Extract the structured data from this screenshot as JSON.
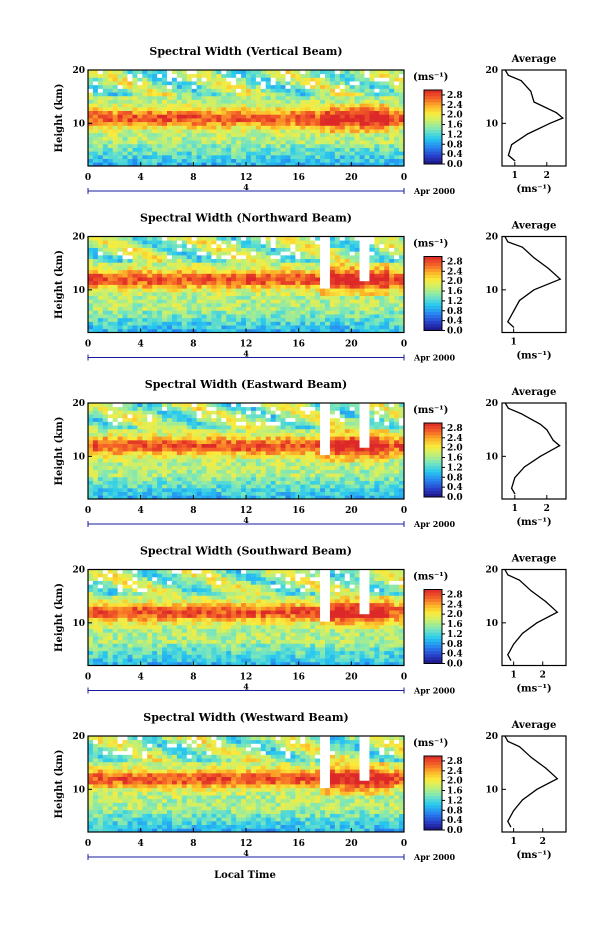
{
  "figure": {
    "xlabel_bottom": "Local Time",
    "date_label": "Apr 2000",
    "day_marker": "4"
  },
  "chart_data": [
    {
      "type": "heatmap",
      "title": "Spectral Width (Vertical Beam)",
      "ylabel": "Height (km)",
      "ylim": [
        2,
        20
      ],
      "xlim": [
        0,
        24
      ],
      "xticks": [
        "0",
        "4",
        "8",
        "12",
        "16",
        "20",
        "0"
      ],
      "yticks": [
        "10",
        "20"
      ],
      "colorbar": {
        "unit": "(ms⁻¹)",
        "ticks": [
          "2.8",
          "2.4",
          "2.0",
          "1.6",
          "1.2",
          "0.8",
          "0.4",
          "0.0"
        ],
        "range": [
          0,
          3.0
        ]
      },
      "layer_peak_km": 11,
      "average_profile": {
        "title": "Average",
        "xlabel": "(ms⁻¹)",
        "xticks": [
          "1",
          "2"
        ],
        "xlim": [
          0.6,
          2.6
        ],
        "height_km": [
          3,
          4,
          6,
          8,
          10,
          11,
          12,
          14,
          16,
          18,
          19,
          20
        ],
        "width_ms": [
          1.0,
          0.8,
          0.9,
          1.4,
          2.1,
          2.5,
          2.3,
          1.6,
          1.5,
          1.2,
          0.8,
          0.7
        ]
      }
    },
    {
      "type": "heatmap",
      "title": "Spectral Width (Northward Beam)",
      "ylabel": "Height (km)",
      "ylim": [
        2,
        20
      ],
      "xlim": [
        0,
        24
      ],
      "xticks": [
        "0",
        "4",
        "8",
        "12",
        "16",
        "20",
        "0"
      ],
      "yticks": [
        "10",
        "20"
      ],
      "colorbar": {
        "unit": "(ms⁻¹)",
        "ticks": [
          "2.8",
          "2.4",
          "2.0",
          "1.6",
          "1.2",
          "0.8",
          "0.4",
          "0.0"
        ],
        "range": [
          0,
          3.0
        ]
      },
      "layer_peak_km": 12,
      "average_profile": {
        "title": "Average",
        "xlabel": "(ms⁻¹)",
        "xticks": [
          "1"
        ],
        "xlim": [
          0.6,
          2.8
        ],
        "height_km": [
          3,
          4,
          6,
          8,
          10,
          12,
          13,
          14,
          16,
          18,
          19,
          20
        ],
        "width_ms": [
          1.0,
          0.8,
          1.0,
          1.2,
          1.7,
          2.6,
          2.4,
          2.2,
          1.7,
          1.3,
          0.8,
          0.7
        ]
      }
    },
    {
      "type": "heatmap",
      "title": "Spectral Width (Eastward Beam)",
      "ylabel": "Height (km)",
      "ylim": [
        2,
        20
      ],
      "xlim": [
        0,
        24
      ],
      "xticks": [
        "0",
        "4",
        "8",
        "12",
        "16",
        "20",
        "0"
      ],
      "yticks": [
        "10",
        "20"
      ],
      "colorbar": {
        "unit": "(ms⁻¹)",
        "ticks": [
          "2.8",
          "2.4",
          "2.0",
          "1.6",
          "1.2",
          "0.8",
          "0.4",
          "0.0"
        ],
        "range": [
          0,
          3.0
        ]
      },
      "layer_peak_km": 12,
      "average_profile": {
        "title": "Average",
        "xlabel": "(ms⁻¹)",
        "xticks": [
          "1",
          "2"
        ],
        "xlim": [
          0.6,
          2.6
        ],
        "height_km": [
          3,
          4,
          6,
          8,
          10,
          12,
          13,
          15,
          16,
          18,
          19,
          20
        ],
        "width_ms": [
          1.0,
          0.9,
          1.0,
          1.3,
          1.8,
          2.4,
          2.2,
          2.0,
          1.8,
          1.2,
          0.8,
          0.7
        ]
      }
    },
    {
      "type": "heatmap",
      "title": "Spectral Width (Southward Beam)",
      "ylabel": "Height (km)",
      "ylim": [
        2,
        20
      ],
      "xlim": [
        0,
        24
      ],
      "xticks": [
        "0",
        "4",
        "8",
        "12",
        "16",
        "20",
        "0"
      ],
      "yticks": [
        "10",
        "20"
      ],
      "colorbar": {
        "unit": "(ms⁻¹)",
        "ticks": [
          "2.8",
          "2.4",
          "2.0",
          "1.6",
          "1.2",
          "0.8",
          "0.4",
          "0.0"
        ],
        "range": [
          0,
          3.0
        ]
      },
      "layer_peak_km": 12,
      "average_profile": {
        "title": "Average",
        "xlabel": "(ms⁻¹)",
        "xticks": [
          "1",
          "2"
        ],
        "xlim": [
          0.6,
          2.8
        ],
        "height_km": [
          3,
          4,
          6,
          8,
          10,
          12,
          13,
          14,
          16,
          18,
          19,
          20
        ],
        "width_ms": [
          0.9,
          0.8,
          1.0,
          1.3,
          1.8,
          2.5,
          2.3,
          2.1,
          1.6,
          1.2,
          0.8,
          0.7
        ]
      }
    },
    {
      "type": "heatmap",
      "title": "Spectral Width (Westward Beam)",
      "ylabel": "Height (km)",
      "ylim": [
        2,
        20
      ],
      "xlim": [
        0,
        24
      ],
      "xticks": [
        "0",
        "4",
        "8",
        "12",
        "16",
        "20",
        "0"
      ],
      "yticks": [
        "10",
        "20"
      ],
      "colorbar": {
        "unit": "(ms⁻¹)",
        "ticks": [
          "2.8",
          "2.4",
          "2.0",
          "1.6",
          "1.2",
          "0.8",
          "0.4",
          "0.0"
        ],
        "range": [
          0,
          3.0
        ]
      },
      "layer_peak_km": 12,
      "average_profile": {
        "title": "Average",
        "xlabel": "(ms⁻¹)",
        "xticks": [
          "1",
          "2"
        ],
        "xlim": [
          0.6,
          2.8
        ],
        "height_km": [
          3,
          4,
          6,
          8,
          10,
          12,
          13,
          14,
          16,
          18,
          19,
          20
        ],
        "width_ms": [
          0.9,
          0.8,
          1.0,
          1.3,
          1.8,
          2.5,
          2.3,
          2.1,
          1.6,
          1.2,
          0.8,
          0.7
        ]
      }
    }
  ]
}
